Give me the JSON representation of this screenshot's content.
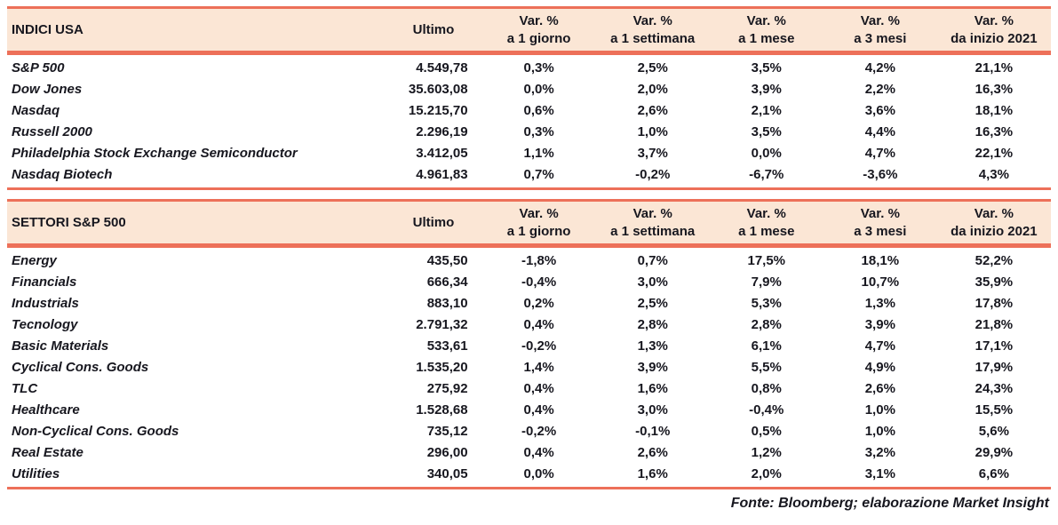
{
  "colors": {
    "accent": "#ED7059",
    "header_bg": "#FBE6D5",
    "text": "#17171F"
  },
  "columns": {
    "ultimo": "Ultimo",
    "var_label": "Var. %",
    "periods": [
      "a 1 giorno",
      "a 1 settimana",
      "a 1 mese",
      "a 3 mesi",
      "da inizio 2021"
    ]
  },
  "tables": [
    {
      "title": "INDICI USA",
      "rows": [
        {
          "name": "S&P 500",
          "ultimo": "4.549,78",
          "d1": "0,3%",
          "w1": "2,5%",
          "m1": "3,5%",
          "m3": "4,2%",
          "ytd": "21,1%"
        },
        {
          "name": "Dow Jones",
          "ultimo": "35.603,08",
          "d1": "0,0%",
          "w1": "2,0%",
          "m1": "3,9%",
          "m3": "2,2%",
          "ytd": "16,3%"
        },
        {
          "name": "Nasdaq",
          "ultimo": "15.215,70",
          "d1": "0,6%",
          "w1": "2,6%",
          "m1": "2,1%",
          "m3": "3,6%",
          "ytd": "18,1%"
        },
        {
          "name": "Russell 2000",
          "ultimo": "2.296,19",
          "d1": "0,3%",
          "w1": "1,0%",
          "m1": "3,5%",
          "m3": "4,4%",
          "ytd": "16,3%"
        },
        {
          "name": "Philadelphia Stock Exchange Semiconductor",
          "ultimo": "3.412,05",
          "d1": "1,1%",
          "w1": "3,7%",
          "m1": "0,0%",
          "m3": "4,7%",
          "ytd": "22,1%"
        },
        {
          "name": "Nasdaq Biotech",
          "ultimo": "4.961,83",
          "d1": "0,7%",
          "w1": "-0,2%",
          "m1": "-6,7%",
          "m3": "-3,6%",
          "ytd": "4,3%"
        }
      ]
    },
    {
      "title": "SETTORI S&P 500",
      "rows": [
        {
          "name": "Energy",
          "ultimo": "435,50",
          "d1": "-1,8%",
          "w1": "0,7%",
          "m1": "17,5%",
          "m3": "18,1%",
          "ytd": "52,2%"
        },
        {
          "name": "Financials",
          "ultimo": "666,34",
          "d1": "-0,4%",
          "w1": "3,0%",
          "m1": "7,9%",
          "m3": "10,7%",
          "ytd": "35,9%"
        },
        {
          "name": "Industrials",
          "ultimo": "883,10",
          "d1": "0,2%",
          "w1": "2,5%",
          "m1": "5,3%",
          "m3": "1,3%",
          "ytd": "17,8%"
        },
        {
          "name": "Tecnology",
          "ultimo": "2.791,32",
          "d1": "0,4%",
          "w1": "2,8%",
          "m1": "2,8%",
          "m3": "3,9%",
          "ytd": "21,8%"
        },
        {
          "name": "Basic Materials",
          "ultimo": "533,61",
          "d1": "-0,2%",
          "w1": "1,3%",
          "m1": "6,1%",
          "m3": "4,7%",
          "ytd": "17,1%"
        },
        {
          "name": "Cyclical Cons. Goods",
          "ultimo": "1.535,20",
          "d1": "1,4%",
          "w1": "3,9%",
          "m1": "5,5%",
          "m3": "4,9%",
          "ytd": "17,9%"
        },
        {
          "name": "TLC",
          "ultimo": "275,92",
          "d1": "0,4%",
          "w1": "1,6%",
          "m1": "0,8%",
          "m3": "2,6%",
          "ytd": "24,3%"
        },
        {
          "name": "Healthcare",
          "ultimo": "1.528,68",
          "d1": "0,4%",
          "w1": "3,0%",
          "m1": "-0,4%",
          "m3": "1,0%",
          "ytd": "15,5%"
        },
        {
          "name": "Non-Cyclical Cons. Goods",
          "ultimo": "735,12",
          "d1": "-0,2%",
          "w1": "-0,1%",
          "m1": "0,5%",
          "m3": "1,0%",
          "ytd": "5,6%"
        },
        {
          "name": "Real Estate",
          "ultimo": "296,00",
          "d1": "0,4%",
          "w1": "2,6%",
          "m1": "1,2%",
          "m3": "3,2%",
          "ytd": "29,9%"
        },
        {
          "name": "Utilities",
          "ultimo": "340,05",
          "d1": "0,0%",
          "w1": "1,6%",
          "m1": "2,0%",
          "m3": "3,1%",
          "ytd": "6,6%"
        }
      ]
    }
  ],
  "footer": "Fonte: Bloomberg; elaborazione Market Insight"
}
